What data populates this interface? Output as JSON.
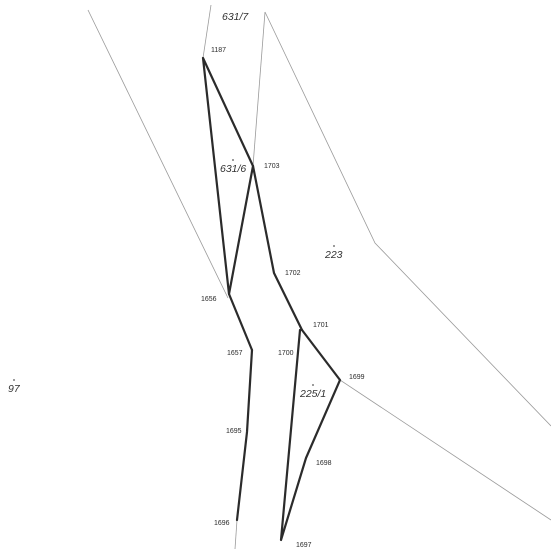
{
  "map": {
    "parcels": [
      {
        "id": "p631-7",
        "label": "631/7"
      },
      {
        "id": "p631-6",
        "label": "631/6"
      },
      {
        "id": "p223",
        "label": "223"
      },
      {
        "id": "p225-1",
        "label": "225/1"
      },
      {
        "id": "p97",
        "label": "97"
      }
    ],
    "points": [
      {
        "id": "pt1187",
        "label": "1187"
      },
      {
        "id": "pt1703",
        "label": "1703"
      },
      {
        "id": "pt1702",
        "label": "1702"
      },
      {
        "id": "pt1656",
        "label": "1656"
      },
      {
        "id": "pt1701",
        "label": "1701"
      },
      {
        "id": "pt1700",
        "label": "1700"
      },
      {
        "id": "pt1657",
        "label": "1657"
      },
      {
        "id": "pt1699",
        "label": "1699"
      },
      {
        "id": "pt1695",
        "label": "1695"
      },
      {
        "id": "pt1698",
        "label": "1698"
      },
      {
        "id": "pt1696",
        "label": "1696"
      },
      {
        "id": "pt1697",
        "label": "1697"
      }
    ]
  }
}
